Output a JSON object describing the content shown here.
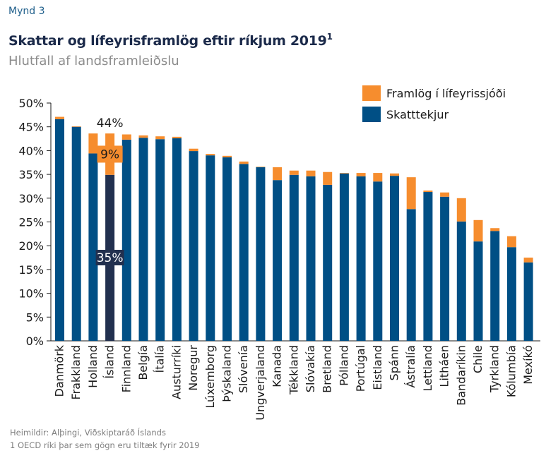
{
  "figure_label": "Mynd 3",
  "title": "Skattar og lífeyrisframlög eftir ríkjum 2019",
  "title_superscript": "1",
  "subtitle": "Hlutfall af landsframleiðslu",
  "footer": {
    "source": "Heimildir: Alþingi, Viðskiptaráð Íslands",
    "note": "1 OECD ríki þar sem gögn eru tiltæk fyrir 2019"
  },
  "colors": {
    "tax": "#004f85",
    "pension": "#f68d2e",
    "highlight_tax": "#22304f",
    "axis": "#1a1a1a"
  },
  "chart_data": {
    "type": "bar",
    "stacked": true,
    "title": "Skattar og lífeyrisframlög eftir ríkjum 2019",
    "subtitle": "Hlutfall af landsframleiðslu",
    "xlabel": "",
    "ylabel": "",
    "ylim": [
      0,
      50
    ],
    "yticks": [
      0,
      5,
      10,
      15,
      20,
      25,
      30,
      35,
      40,
      45,
      50
    ],
    "ytick_labels": [
      "0%",
      "5%",
      "10%",
      "15%",
      "20%",
      "25%",
      "30%",
      "35%",
      "40%",
      "45%",
      "50%"
    ],
    "grid": false,
    "legend_position": "top-right",
    "highlight_category": "Ísland",
    "categories": [
      "Danmörk",
      "Frakkland",
      "Holland",
      "Ísland",
      "Finnland",
      "Belgía",
      "Ítalía",
      "Austurríki",
      "Noregur",
      "Lúxemborg",
      "Þýskaland",
      "Slóvenía",
      "Ungverjaland",
      "Kanada",
      "Tékkland",
      "Slóvakía",
      "Bretland",
      "Pólland",
      "Portúgal",
      "Eistland",
      "Spánn",
      "Ástralía",
      "Lettland",
      "Litháen",
      "Bandaríkin",
      "Chile",
      "Tyrkland",
      "Kólumbía",
      "Mexíkó"
    ],
    "series": [
      {
        "name": "Skatttekjur",
        "values": [
          46.6,
          45.0,
          39.4,
          34.9,
          42.3,
          42.7,
          42.4,
          42.6,
          39.9,
          39.0,
          38.6,
          37.2,
          36.5,
          33.8,
          34.9,
          34.6,
          32.8,
          35.2,
          34.6,
          33.5,
          34.7,
          27.7,
          31.3,
          30.3,
          25.1,
          20.9,
          23.1,
          19.7,
          16.5
        ]
      },
      {
        "name": "Framlög í lífeyrissjóði",
        "values": [
          0.5,
          0.1,
          4.2,
          8.7,
          1.1,
          0.5,
          0.6,
          0.3,
          0.5,
          0.3,
          0.3,
          0.5,
          0.1,
          2.7,
          0.9,
          1.2,
          2.7,
          0.1,
          0.7,
          1.8,
          0.5,
          6.7,
          0.3,
          0.9,
          4.9,
          4.5,
          0.6,
          2.3,
          1.0
        ]
      }
    ],
    "annotations": [
      {
        "category": "Ísland",
        "text": "44%",
        "target": "total"
      },
      {
        "category": "Ísland",
        "text": "9%",
        "target": "Framlög í lífeyrissjóði"
      },
      {
        "category": "Ísland",
        "text": "35%",
        "target": "Skatttekjur"
      }
    ]
  }
}
